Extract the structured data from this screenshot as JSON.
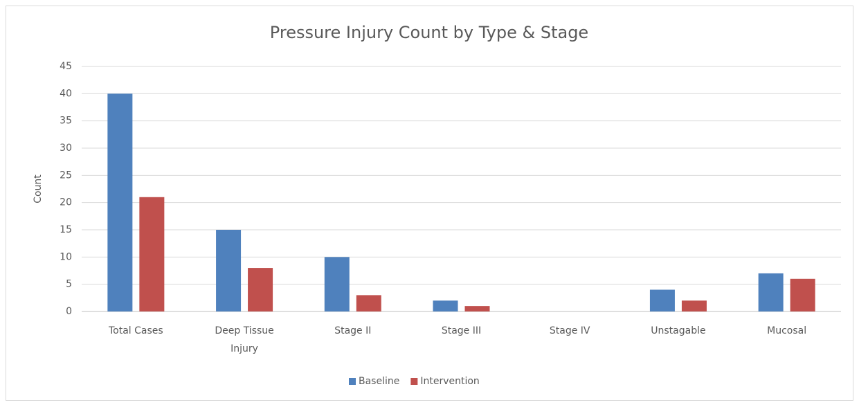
{
  "chart_data": {
    "type": "bar",
    "title": "Pressure Injury Count by Type & Stage",
    "y_label": "Count",
    "categories": [
      "Total Cases",
      "Deep Tissue Injury",
      "Stage II",
      "Stage III",
      "Stage IV",
      "Unstagable",
      "Mucosal"
    ],
    "series": [
      {
        "name": "Baseline",
        "color": "#4f81bd",
        "values": [
          40,
          15,
          10,
          2,
          0,
          4,
          7
        ]
      },
      {
        "name": "Intervention",
        "color": "#c0504d",
        "values": [
          21,
          8,
          3,
          1,
          0,
          2,
          6
        ]
      }
    ],
    "ylim": [
      0,
      45
    ],
    "yticks": [
      0,
      5,
      10,
      15,
      20,
      25,
      30,
      35,
      40,
      45
    ],
    "grid": true,
    "legend": "bottom"
  }
}
